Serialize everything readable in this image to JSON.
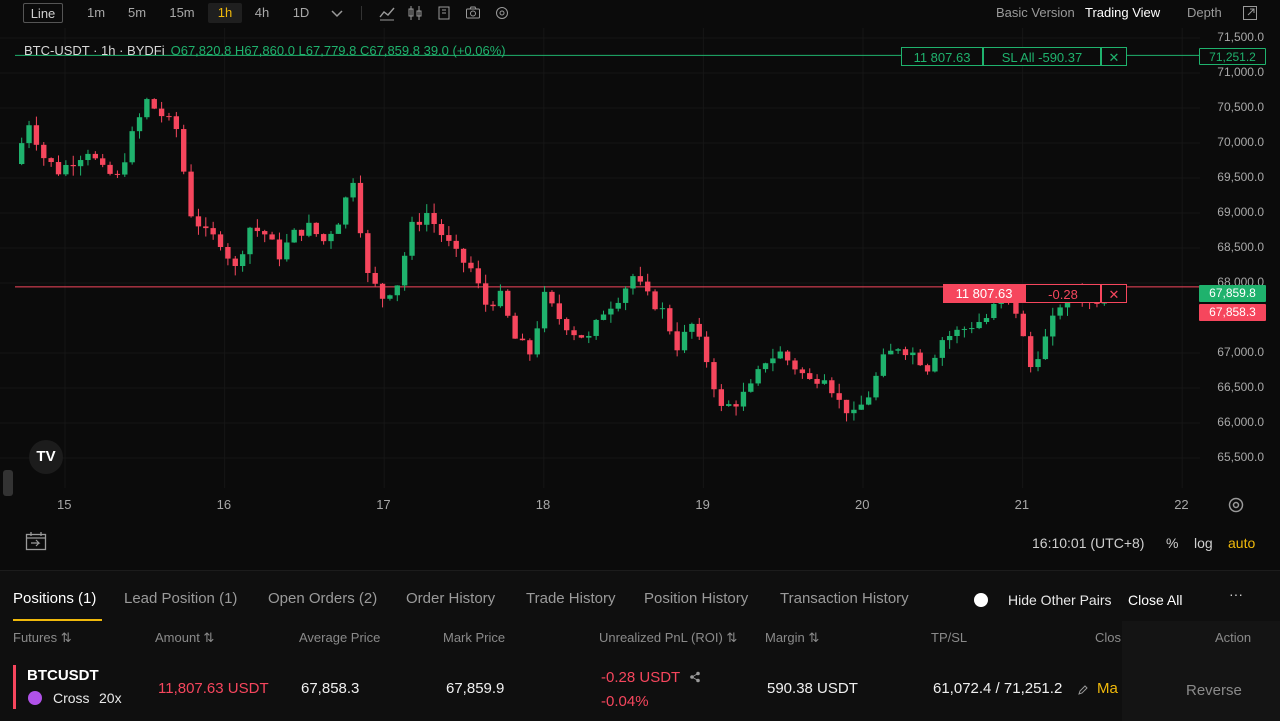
{
  "toolbar": {
    "chart_type": "Line",
    "intervals": [
      "1m",
      "5m",
      "15m",
      "1h",
      "4h",
      "1D"
    ],
    "active_interval": "1h",
    "basic_version": "Basic Version",
    "trading_view": "Trading View",
    "depth": "Depth"
  },
  "legend": {
    "symbol": "BTC-USDT · 1h · BYDFi",
    "ohlc": "O67,820.8 H67,860.0 L67,779.8 C67,859.8 39.0 (+0.06%)"
  },
  "chart_data": {
    "type": "candlestick",
    "symbol": "BTC-USDT",
    "interval": "1h",
    "x_ticks": [
      "15",
      "16",
      "17",
      "18",
      "19",
      "20",
      "21",
      "22"
    ],
    "y_ticks": [
      "71,500.0",
      "71,000.0",
      "70,500.0",
      "70,000.0",
      "69,500.0",
      "69,000.0",
      "68,500.0",
      "68,000.0",
      "67,000.0",
      "66,500.0",
      "66,000.0",
      "65,500.0"
    ],
    "ylim": [
      65300,
      71650
    ],
    "close_path": [
      69700,
      70300,
      69800,
      69600,
      69750,
      69900,
      69600,
      69500,
      70100,
      70600,
      70400,
      70200,
      69000,
      68700,
      68600,
      68200,
      68800,
      68700,
      68400,
      68700,
      68800,
      68600,
      68900,
      69500,
      68100,
      67800,
      68000,
      68800,
      69000,
      68700,
      68400,
      68200,
      67700,
      67800,
      67200,
      67000,
      67800,
      67500,
      67300,
      67200,
      67600,
      67800,
      68100,
      67800,
      67600,
      67100,
      67400,
      66900,
      66200,
      66300,
      66500,
      66900,
      67000,
      66800,
      66600,
      66700,
      66300,
      66100,
      66400,
      66900,
      67100,
      67000,
      66800,
      67200,
      67300,
      67400,
      67500,
      67800,
      67600,
      66800,
      67200,
      67700,
      67900,
      67700,
      67860
    ],
    "positions": [
      {
        "amount": "11 807.63",
        "label": "SL All -590.37",
        "price": "71,251.2",
        "color": "#1fb26d"
      },
      {
        "amount": "11 807.63",
        "label": "-0.28",
        "price": "67,858.3",
        "color": "#f6465d"
      }
    ],
    "last_price": "67,859.8",
    "last_price_color": "#1fb26d",
    "sl_price_color": "#1fb26d",
    "entry_price_color": "#f6465d",
    "up_color": "#1fb26d",
    "down_color": "#f6465d"
  },
  "status": {
    "time": "16:10:01 (UTC+8)",
    "percent": "%",
    "log": "log",
    "auto": "auto"
  },
  "tabs": [
    "Positions (1)",
    "Lead Position (1)",
    "Open Orders (2)",
    "Order History",
    "Trade History",
    "Position History",
    "Transaction History"
  ],
  "panel_actions": {
    "hide_other_pairs": "Hide Other Pairs",
    "close_all": "Close All",
    "more": "···"
  },
  "columns": [
    "Futures",
    "Amount",
    "Average Price",
    "Mark Price",
    "Unrealized PnL (ROI)",
    "Margin",
    "TP/SL",
    "Clos",
    "Action"
  ],
  "position_row": {
    "symbol": "BTCUSDT",
    "mode": "Cross",
    "leverage": "20x",
    "amount": "11,807.63 USDT",
    "average_price": "67,858.3",
    "mark_price": "67,859.9",
    "pnl": "-0.28 USDT",
    "roi": "-0.04%",
    "margin": "590.38 USDT",
    "tpsl": "61,072.4 / 71,251.2",
    "close": "Ma",
    "action": "Reverse"
  }
}
